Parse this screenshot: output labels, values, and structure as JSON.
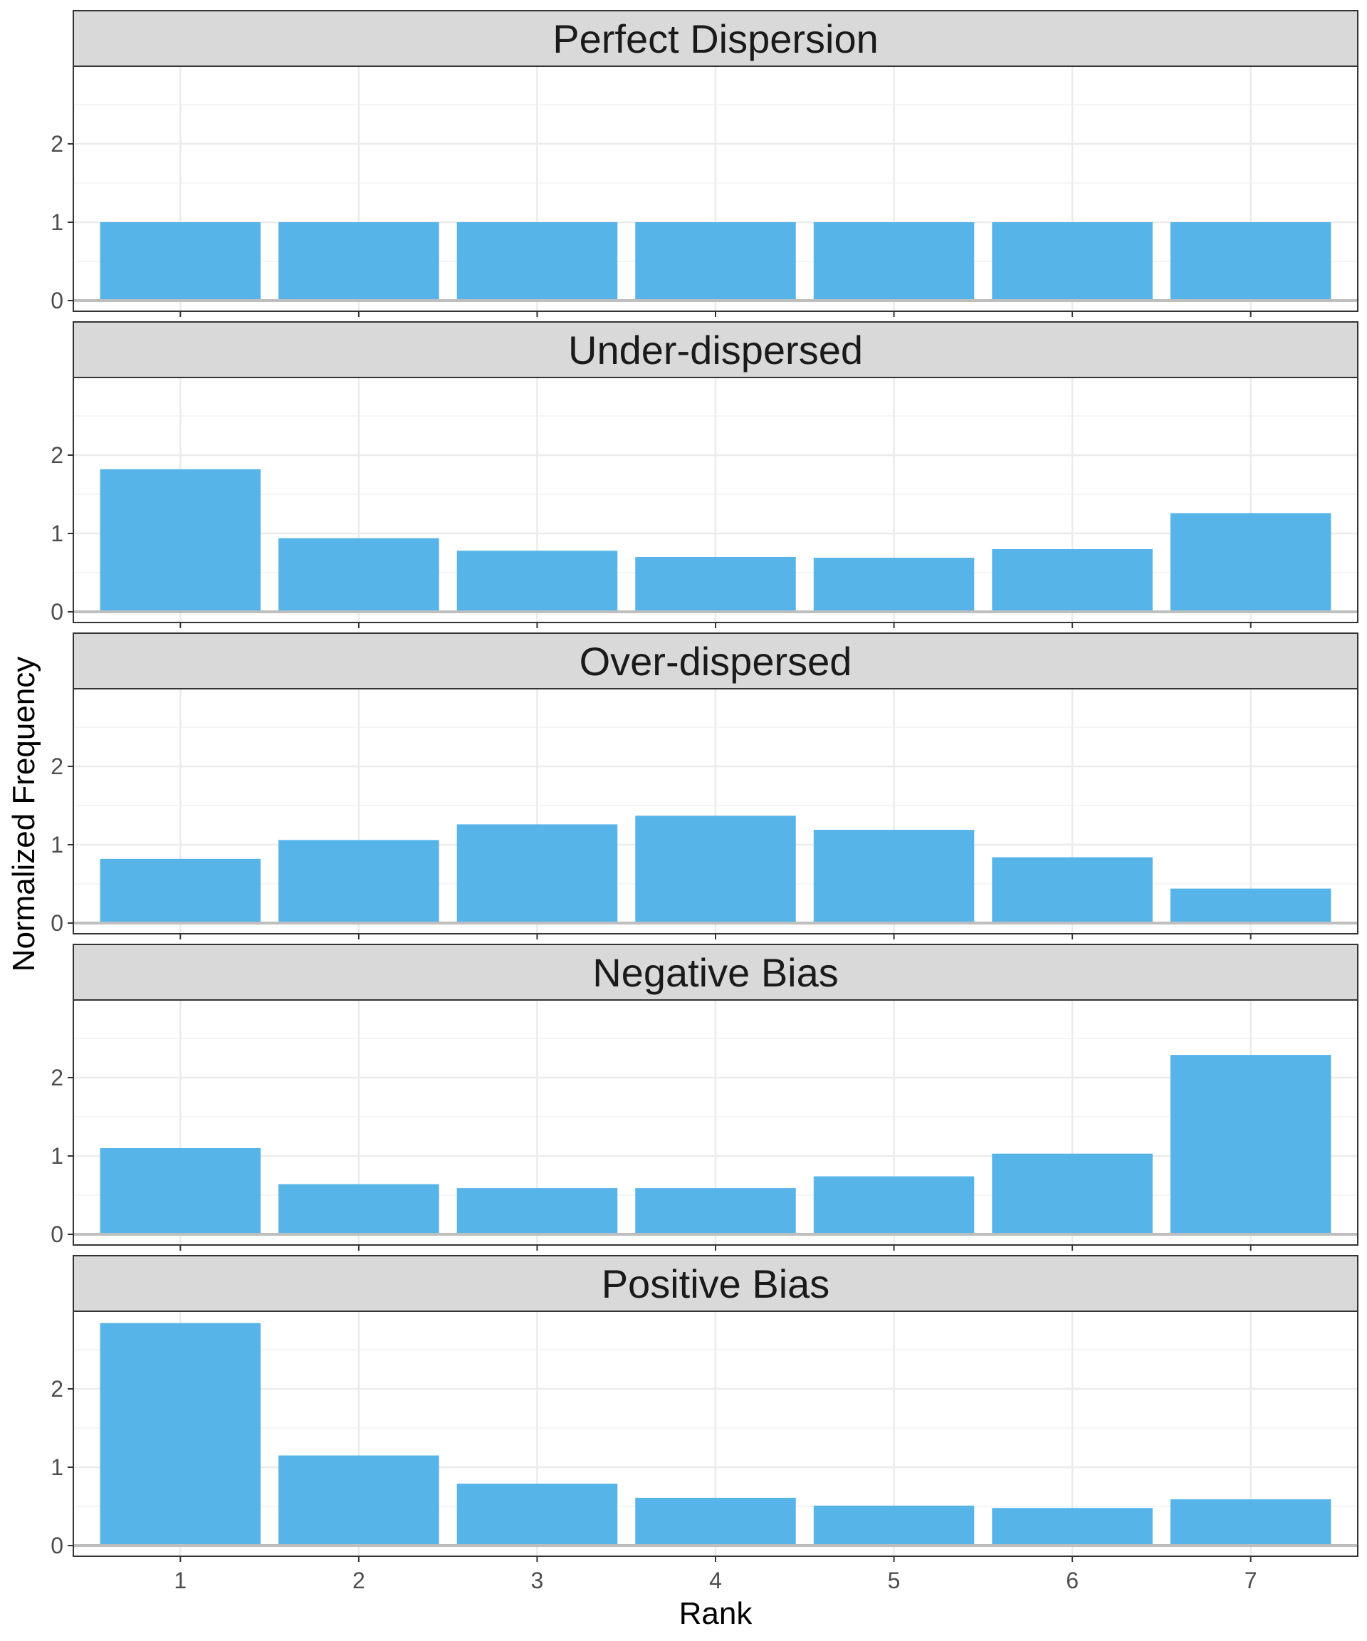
{
  "chart_data": {
    "type": "bar",
    "xlabel": "Rank",
    "ylabel": "Normalized Frequency",
    "categories": [
      "1",
      "2",
      "3",
      "4",
      "5",
      "6",
      "7"
    ],
    "ylim": [
      0,
      3
    ],
    "yticks": [
      "0",
      "1",
      "2"
    ],
    "bar_color": "#56B4E9",
    "grid": true,
    "facets": [
      {
        "title": "Perfect Dispersion",
        "values": [
          1.0,
          1.0,
          1.0,
          1.0,
          1.0,
          1.0,
          1.0
        ]
      },
      {
        "title": "Under-dispersed",
        "values": [
          1.82,
          0.94,
          0.78,
          0.7,
          0.69,
          0.8,
          1.26
        ]
      },
      {
        "title": "Over-dispersed",
        "values": [
          0.82,
          1.06,
          1.26,
          1.37,
          1.19,
          0.84,
          0.44
        ]
      },
      {
        "title": "Negative Bias",
        "values": [
          1.1,
          0.64,
          0.59,
          0.59,
          0.74,
          1.03,
          2.29
        ]
      },
      {
        "title": "Positive Bias",
        "values": [
          2.84,
          1.15,
          0.79,
          0.61,
          0.51,
          0.48,
          0.59
        ]
      }
    ]
  }
}
